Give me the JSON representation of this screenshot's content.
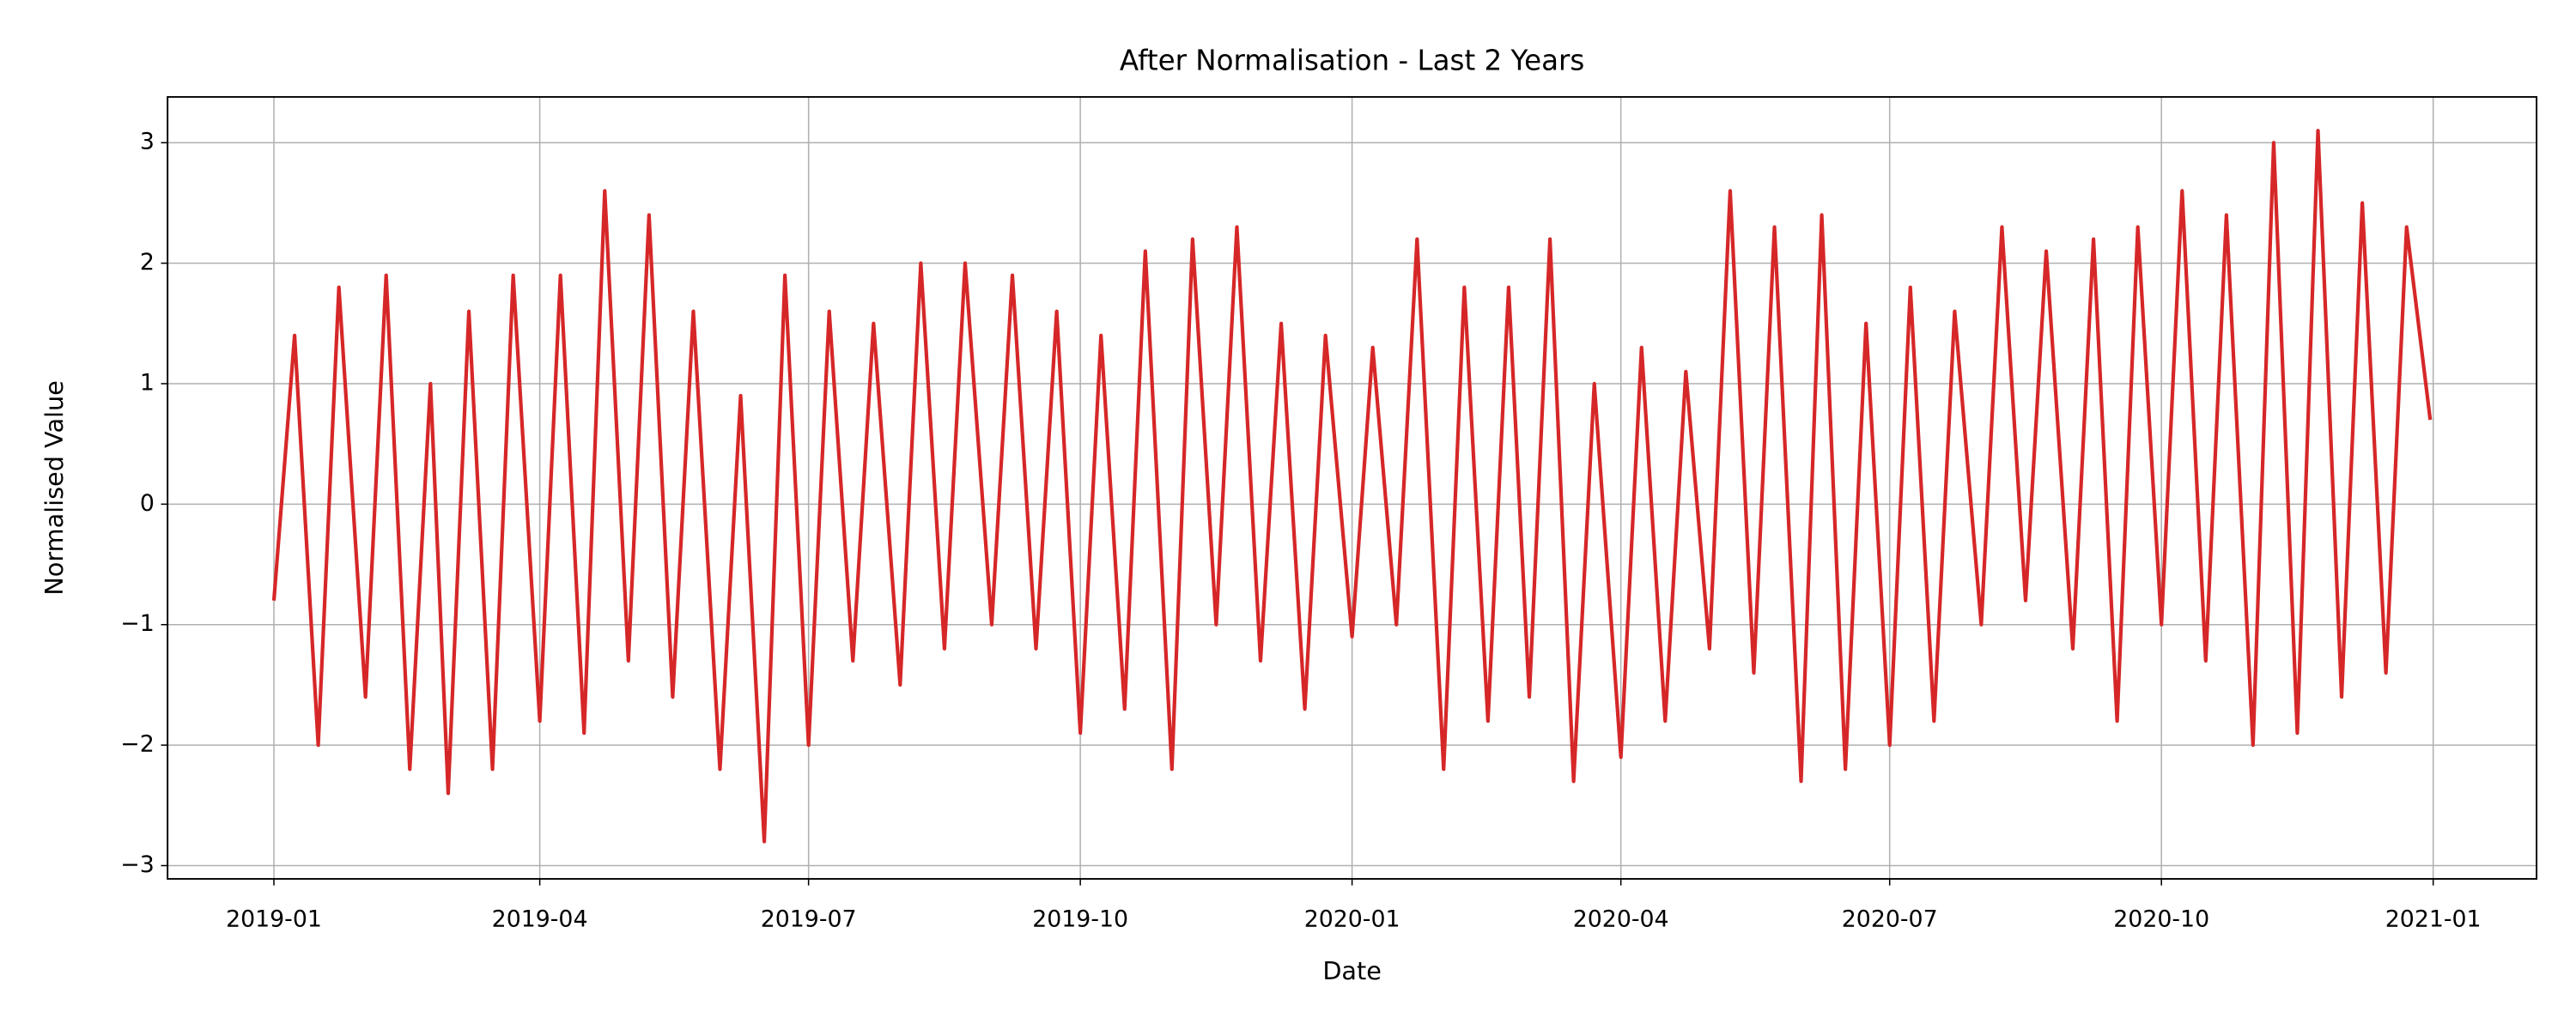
{
  "chart_data": {
    "type": "line",
    "title": "After Normalisation - Last 2 Years",
    "xlabel": "Date",
    "ylabel": "Normalised Value",
    "grid": true,
    "xlim": [
      "2018-11-26",
      "2021-02-05"
    ],
    "ylim": [
      -3.11,
      3.38
    ],
    "xticks": [
      {
        "value": "2019-01-01",
        "label": "2019-01"
      },
      {
        "value": "2019-04-01",
        "label": "2019-04"
      },
      {
        "value": "2019-07-01",
        "label": "2019-07"
      },
      {
        "value": "2019-10-01",
        "label": "2019-10"
      },
      {
        "value": "2020-01-01",
        "label": "2020-01"
      },
      {
        "value": "2020-04-01",
        "label": "2020-04"
      },
      {
        "value": "2020-07-01",
        "label": "2020-07"
      },
      {
        "value": "2020-10-01",
        "label": "2020-10"
      },
      {
        "value": "2021-01-01",
        "label": "2021-01"
      }
    ],
    "yticks": [
      {
        "value": -3,
        "label": "−3"
      },
      {
        "value": -2,
        "label": "−2"
      },
      {
        "value": -1,
        "label": "−1"
      },
      0,
      1,
      2,
      3
    ],
    "x": [
      "2019-01-01",
      "2019-01-08",
      "2019-01-16",
      "2019-01-23",
      "2019-02-01",
      "2019-02-08",
      "2019-02-16",
      "2019-02-23",
      "2019-03-01",
      "2019-03-08",
      "2019-03-16",
      "2019-03-23",
      "2019-04-01",
      "2019-04-08",
      "2019-04-16",
      "2019-04-23",
      "2019-05-01",
      "2019-05-08",
      "2019-05-16",
      "2019-05-23",
      "2019-06-01",
      "2019-06-08",
      "2019-06-16",
      "2019-06-23",
      "2019-07-01",
      "2019-07-08",
      "2019-07-16",
      "2019-07-23",
      "2019-08-01",
      "2019-08-08",
      "2019-08-16",
      "2019-08-23",
      "2019-09-01",
      "2019-09-08",
      "2019-09-16",
      "2019-09-23",
      "2019-10-01",
      "2019-10-08",
      "2019-10-16",
      "2019-10-23",
      "2019-11-01",
      "2019-11-08",
      "2019-11-16",
      "2019-11-23",
      "2019-12-01",
      "2019-12-08",
      "2019-12-16",
      "2019-12-23",
      "2020-01-01",
      "2020-01-08",
      "2020-01-16",
      "2020-01-23",
      "2020-02-01",
      "2020-02-08",
      "2020-02-16",
      "2020-02-23",
      "2020-03-01",
      "2020-03-08",
      "2020-03-16",
      "2020-03-23",
      "2020-04-01",
      "2020-04-08",
      "2020-04-16",
      "2020-04-23",
      "2020-05-01",
      "2020-05-08",
      "2020-05-16",
      "2020-05-23",
      "2020-06-01",
      "2020-06-08",
      "2020-06-16",
      "2020-06-23",
      "2020-07-01",
      "2020-07-08",
      "2020-07-16",
      "2020-07-23",
      "2020-08-01",
      "2020-08-08",
      "2020-08-16",
      "2020-08-23",
      "2020-09-01",
      "2020-09-08",
      "2020-09-16",
      "2020-09-23",
      "2020-10-01",
      "2020-10-08",
      "2020-10-16",
      "2020-10-23",
      "2020-11-01",
      "2020-11-08",
      "2020-11-16",
      "2020-11-23",
      "2020-12-01",
      "2020-12-08",
      "2020-12-16",
      "2020-12-23",
      "2020-12-31"
    ],
    "series": [
      {
        "name": "Normalised Value",
        "color": "#d62728",
        "values": [
          -0.8,
          1.4,
          -2.0,
          1.8,
          -1.6,
          1.9,
          -2.2,
          1.0,
          -2.4,
          1.6,
          -2.2,
          1.9,
          -1.8,
          1.9,
          -1.9,
          2.6,
          -1.3,
          2.4,
          -1.6,
          1.6,
          -2.2,
          0.9,
          -2.8,
          1.9,
          -2.0,
          1.6,
          -1.3,
          1.5,
          -1.5,
          2.0,
          -1.2,
          2.0,
          -1.0,
          1.9,
          -1.2,
          1.6,
          -1.9,
          1.4,
          -1.7,
          2.1,
          -2.2,
          2.2,
          -1.0,
          2.3,
          -1.3,
          1.5,
          -1.7,
          1.4,
          -1.1,
          1.3,
          -1.0,
          2.2,
          -2.2,
          1.8,
          -1.8,
          1.8,
          -1.6,
          2.2,
          -2.3,
          1.0,
          -2.1,
          1.3,
          -1.8,
          1.1,
          -1.2,
          2.6,
          -1.4,
          2.3,
          -2.3,
          2.4,
          -2.2,
          1.5,
          -2.0,
          1.8,
          -1.8,
          1.6,
          -1.0,
          2.3,
          -0.8,
          2.1,
          -1.2,
          2.2,
          -1.8,
          2.3,
          -1.0,
          2.6,
          -1.3,
          2.4,
          -2.0,
          3.0,
          -1.9,
          3.1,
          -1.6,
          2.5,
          -1.4,
          2.3,
          0.7
        ]
      }
    ]
  }
}
